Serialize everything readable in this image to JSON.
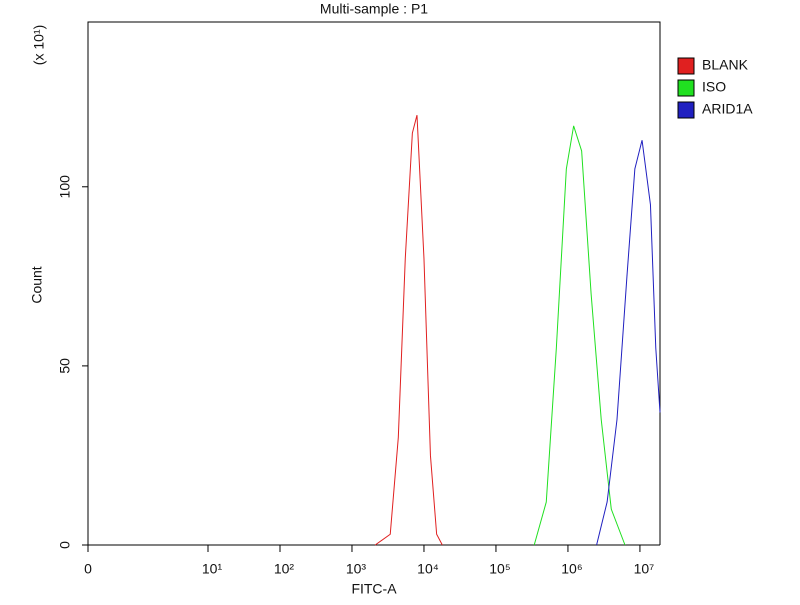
{
  "chart_data": {
    "type": "line",
    "title": "Multi-sample : P1",
    "x_label": "FITC-A",
    "y_label": "Count",
    "y_multiplier": "(x 10¹)",
    "xscale": "symlog",
    "xlim": [
      0,
      19000000
    ],
    "ylim": [
      0,
      146
    ],
    "xticks": [
      0,
      {
        "value": 10,
        "label": "10¹"
      },
      {
        "value": 100,
        "label": "10²"
      },
      {
        "value": 1000,
        "label": "10³"
      },
      {
        "value": 10000,
        "label": "10⁴"
      },
      {
        "value": 100000,
        "label": "10⁵"
      },
      {
        "value": 1000000,
        "label": "10⁶"
      },
      {
        "value": 10000000,
        "label": "10⁷"
      }
    ],
    "yticks": [
      0,
      50,
      100
    ],
    "legend": "upper right",
    "series": [
      {
        "name": "BLANK",
        "color": "#e02020",
        "x": [
          2100,
          3400,
          4400,
          5500,
          6900,
          8000,
          10000,
          12300,
          15000,
          18000
        ],
        "values": [
          0,
          3,
          30,
          80,
          115,
          120,
          80,
          25,
          3,
          0
        ]
      },
      {
        "name": "ISO",
        "color": "#20e020",
        "x": [
          340000,
          500000,
          690000,
          950000,
          1200000,
          1550000,
          2100000,
          2900000,
          4000000,
          6200000
        ],
        "values": [
          0,
          12,
          55,
          105,
          117,
          110,
          70,
          35,
          10,
          0
        ]
      },
      {
        "name": "ARID1A",
        "color": "#2020c0",
        "x": [
          2500000,
          3500000,
          4800000,
          6600000,
          8500000,
          10700000,
          14000000,
          16600000,
          19000000
        ],
        "values": [
          0,
          12,
          35,
          75,
          105,
          113,
          95,
          55,
          37
        ]
      }
    ]
  }
}
